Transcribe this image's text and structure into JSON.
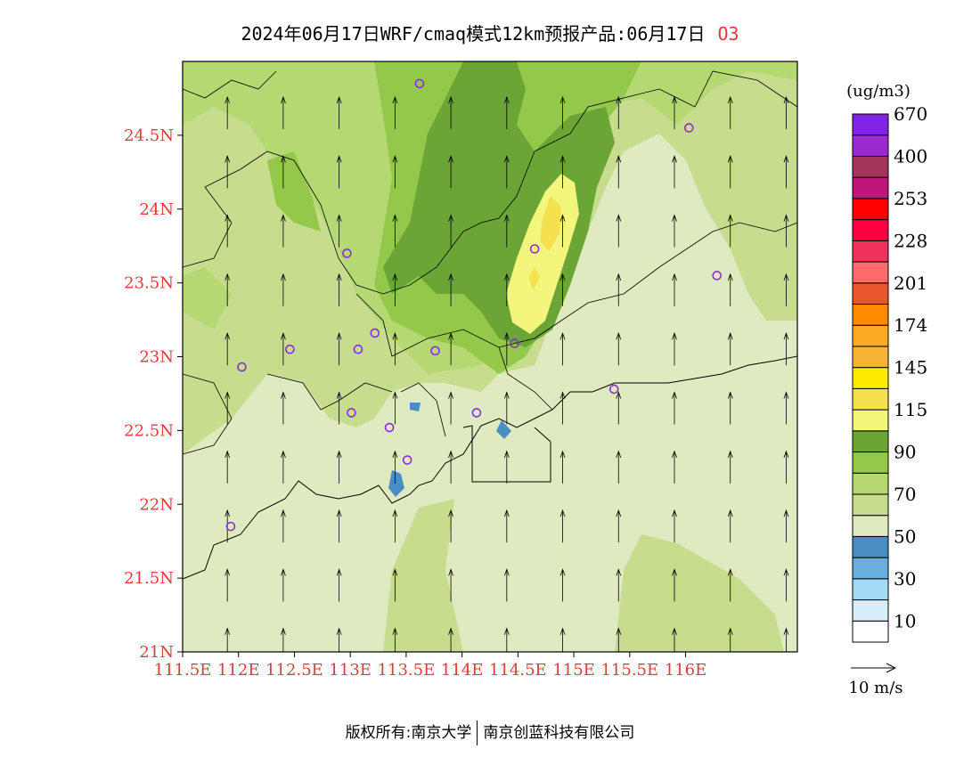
{
  "title": {
    "main": "2024年06月17日WRF/cmaq模式12km预报产品:06月17日",
    "species": "O3"
  },
  "colors": {
    "axis_label": "#e03a3a",
    "station_marker": "#8a2be2",
    "background_field": "#dfeac0"
  },
  "map": {
    "lon_range": [
      111.5,
      117.0
    ],
    "lat_range": [
      21.0,
      25.0
    ],
    "lon_ticks": [
      "111.5E",
      "112E",
      "112.5E",
      "113E",
      "113.5E",
      "114E",
      "114.5E",
      "115E",
      "115.5E",
      "116E"
    ],
    "lon_values": [
      111.5,
      112.0,
      112.5,
      113.0,
      113.5,
      114.0,
      114.5,
      115.0,
      115.5,
      116.0
    ],
    "lat_ticks": [
      "21N",
      "21.5N",
      "22N",
      "22.5N",
      "23N",
      "23.5N",
      "24N",
      "24.5N"
    ],
    "lat_values": [
      21.0,
      21.5,
      22.0,
      22.5,
      23.0,
      23.5,
      24.0,
      24.5
    ],
    "stations": [
      {
        "lon": 113.62,
        "lat": 24.85
      },
      {
        "lon": 116.03,
        "lat": 24.55
      },
      {
        "lon": 114.65,
        "lat": 23.73
      },
      {
        "lon": 116.28,
        "lat": 23.55
      },
      {
        "lon": 112.97,
        "lat": 23.7
      },
      {
        "lon": 113.22,
        "lat": 23.16
      },
      {
        "lon": 113.07,
        "lat": 23.05
      },
      {
        "lon": 112.46,
        "lat": 23.05
      },
      {
        "lon": 113.76,
        "lat": 23.04
      },
      {
        "lon": 114.47,
        "lat": 23.09
      },
      {
        "lon": 112.03,
        "lat": 22.93
      },
      {
        "lon": 115.36,
        "lat": 22.78
      },
      {
        "lon": 113.01,
        "lat": 22.62
      },
      {
        "lon": 114.13,
        "lat": 22.62
      },
      {
        "lon": 113.35,
        "lat": 22.52
      },
      {
        "lon": 113.51,
        "lat": 22.3
      },
      {
        "lon": 111.93,
        "lat": 21.85
      }
    ],
    "wind": {
      "u": 0.0,
      "v": 10.0,
      "note_speed": "10 m/s"
    }
  },
  "colorbar": {
    "unit": "(ug/m3)",
    "colors": [
      "#ffffff",
      "#d8eef8",
      "#a3daf5",
      "#6aaede",
      "#4a8cc4",
      "#dfeac0",
      "#c6dd8e",
      "#b5d872",
      "#93c84b",
      "#6aa536",
      "#f3f57c",
      "#f4e14d",
      "#ffea00",
      "#f7b335",
      "#fbab23",
      "#ff8a00",
      "#e9572c",
      "#ff6a6a",
      "#f0315c",
      "#ff0040",
      "#ff0000",
      "#c01679",
      "#a3355c",
      "#9a2bcf",
      "#8224e3"
    ],
    "labels": [
      "10",
      "30",
      "50",
      "70",
      "90",
      "115",
      "145",
      "174",
      "201",
      "228",
      "253",
      "400",
      "670"
    ]
  },
  "vector_legend": {
    "label": "10 m/s"
  },
  "footer": {
    "left": "版权所有:南京大学",
    "right": "南京创蓝科技有限公司"
  }
}
